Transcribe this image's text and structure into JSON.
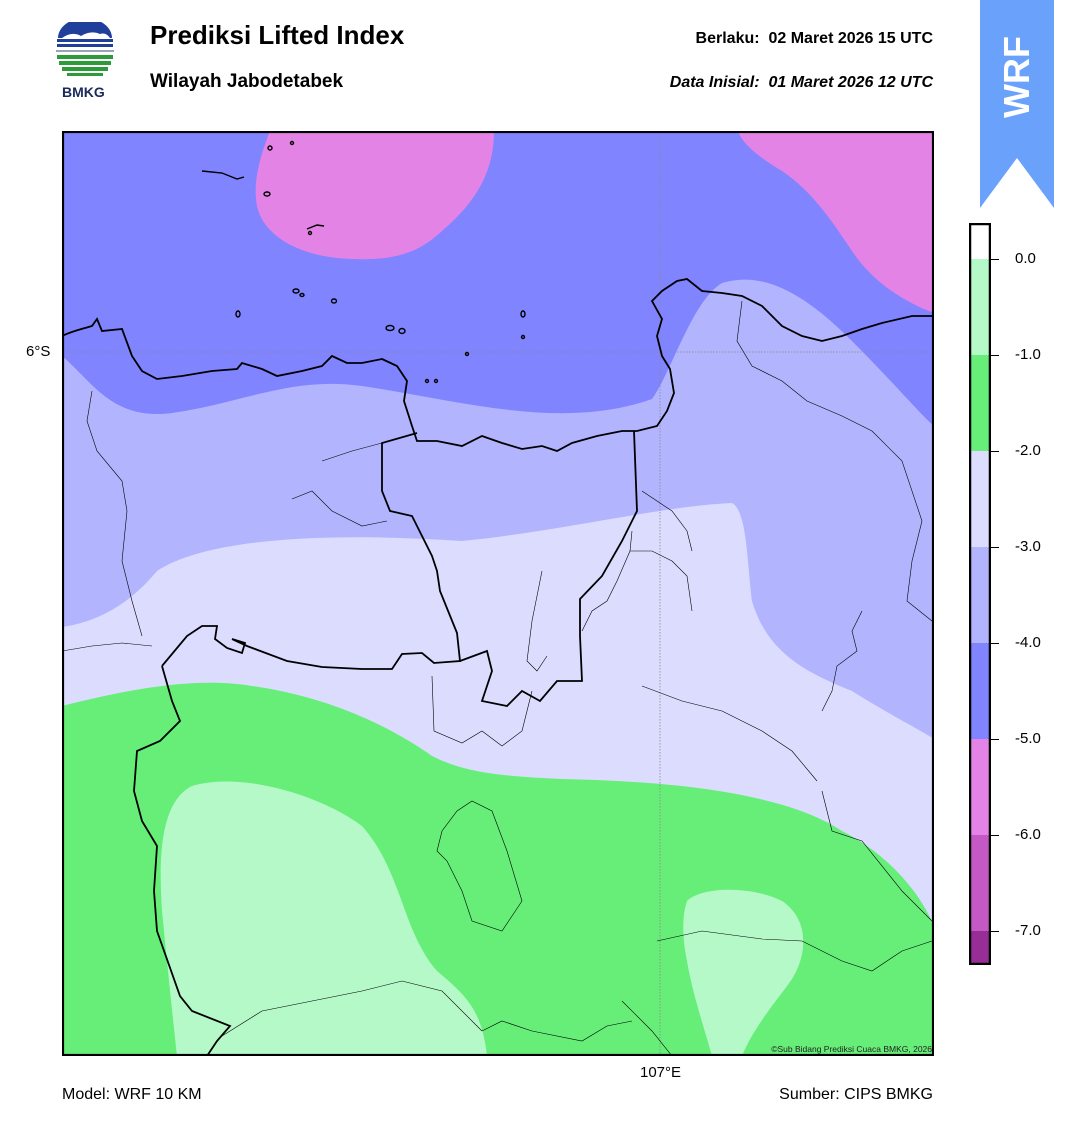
{
  "header": {
    "title": "Prediksi Lifted Index",
    "subtitle": "Wilayah Jabodetabek",
    "valid_label": "Berlaku:",
    "valid_time": "02 Maret 2026 15 UTC",
    "init_label": "Data Inisial:",
    "init_time": "01 Maret 2026 12 UTC",
    "logo_text": "BMKG"
  },
  "badge": {
    "text": "WRF",
    "color": "#6aa1fb"
  },
  "map": {
    "lat_label": "6°S",
    "lon_label": "107°E",
    "copyright": "©Sub Bidang Prediksi Cuaca BMKG, 2026"
  },
  "footer": {
    "model": "Model: WRF 10 KM",
    "source": "Sumber: CIPS BMKG"
  },
  "colorbar": {
    "ticks": [
      "0.0",
      "-1.0",
      "-2.0",
      "-3.0",
      "-4.0",
      "-5.0",
      "-6.0",
      "-7.0"
    ],
    "colors": [
      "#ffffff",
      "#b6f9c9",
      "#66ee78",
      "#dcdcfe",
      "#b2b4fe",
      "#8084fe",
      "#e483e6",
      "#c459c6",
      "#972e97"
    ]
  }
}
